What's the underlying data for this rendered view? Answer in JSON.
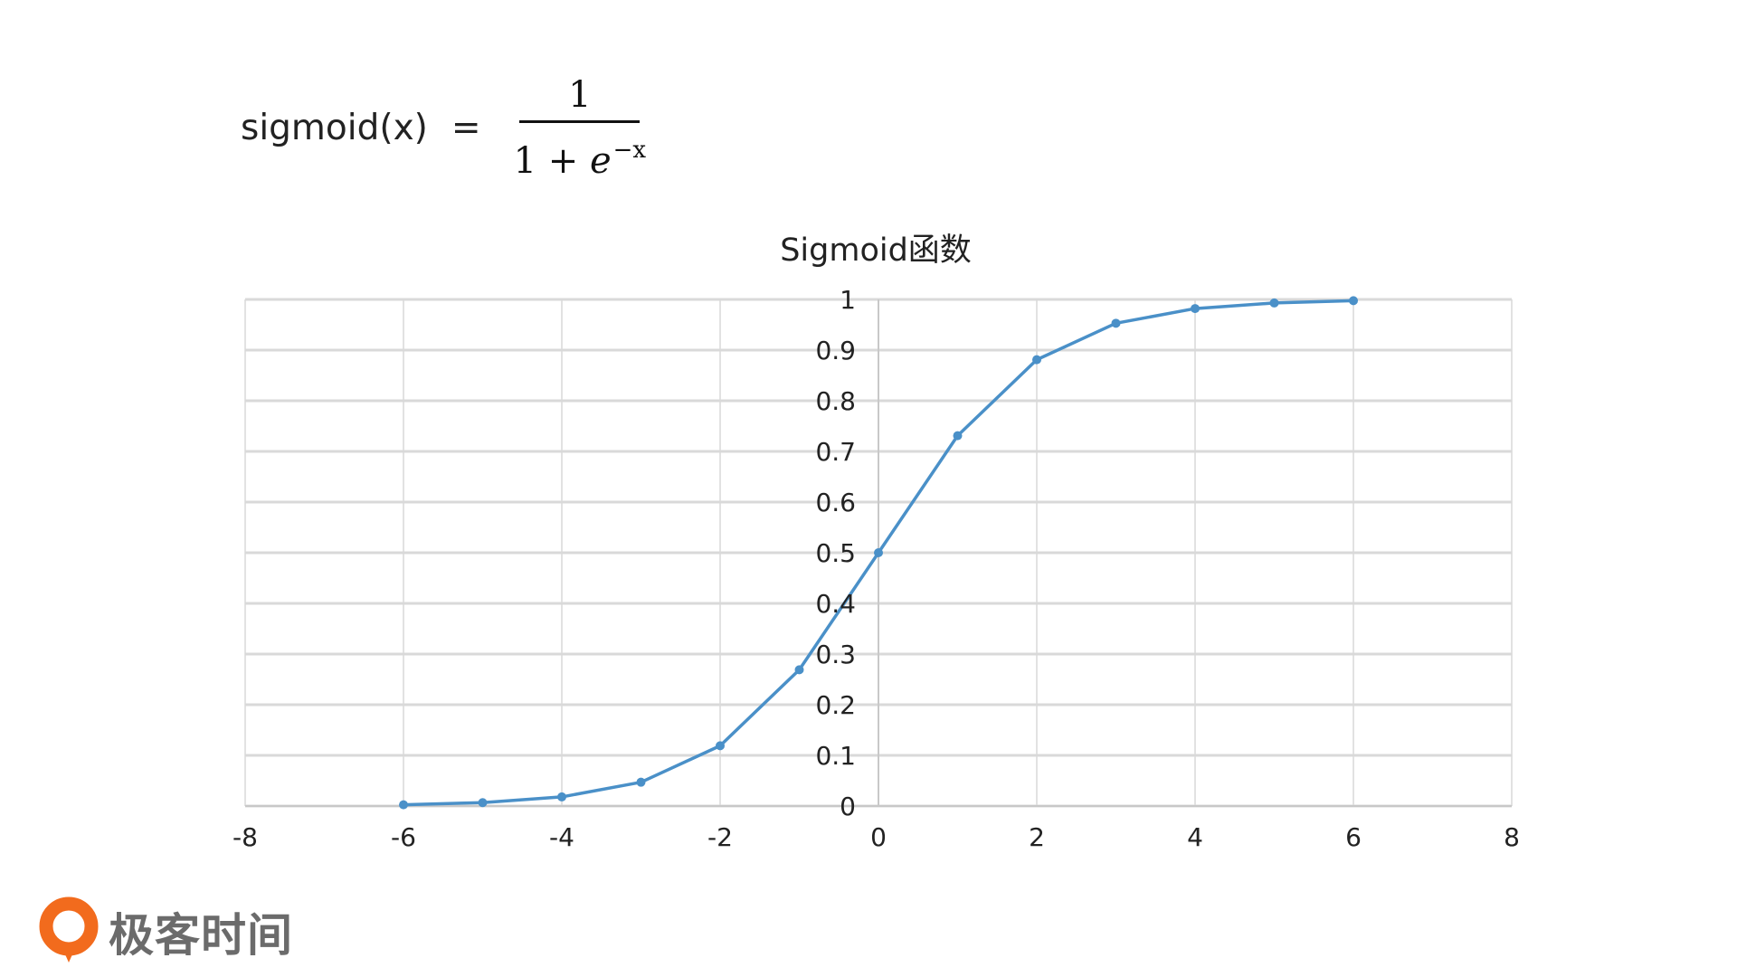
{
  "formula": {
    "lhs": "sigmoid(x)",
    "eq": "=",
    "numerator": "1",
    "denominator_base": "1 + ",
    "denominator_e": "e",
    "denominator_exp": "−x"
  },
  "chart_data": {
    "type": "scatter",
    "title": "Sigmoid函数",
    "xlabel": "",
    "ylabel": "",
    "xlim": [
      -8,
      8
    ],
    "ylim": [
      0,
      1
    ],
    "x_ticks": [
      "-8",
      "-6",
      "-4",
      "-2",
      "0",
      "2",
      "4",
      "6",
      "8"
    ],
    "y_ticks": [
      "0",
      "0.1",
      "0.2",
      "0.3",
      "0.4",
      "0.5",
      "0.6",
      "0.7",
      "0.8",
      "0.9",
      "1"
    ],
    "grid": true,
    "line_color": "#4a90c8",
    "series": [
      {
        "x": [
          -6,
          -5,
          -4,
          -3,
          -2,
          -1,
          0,
          1,
          2,
          3,
          4,
          5,
          6
        ],
        "y": [
          0.0025,
          0.0067,
          0.018,
          0.047,
          0.119,
          0.269,
          0.5,
          0.731,
          0.881,
          0.953,
          0.982,
          0.993,
          0.9975
        ]
      }
    ]
  },
  "logo": {
    "text": "极客时间",
    "color": "#f26b1d"
  }
}
